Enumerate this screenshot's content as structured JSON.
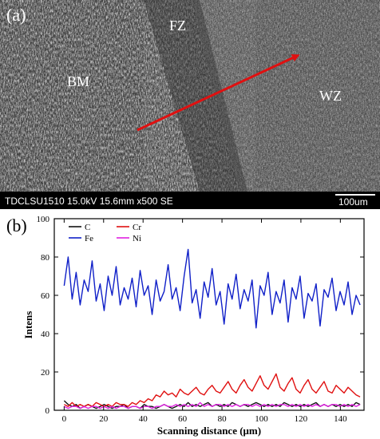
{
  "panel_a": {
    "tag": "(a)",
    "regions": [
      "FZ",
      "BM",
      "WZ"
    ],
    "info_bar": "TDCLSU1510 15.0kV 15.6mm x500 SE",
    "scale_label": "100um",
    "colors": {
      "arrow": "#e01010",
      "info_bar_bg": "#000000"
    }
  },
  "chart_data": {
    "type": "line",
    "panel_tag": "(b)",
    "xlabel": "Scanning distance (μm)",
    "ylabel": "Intens",
    "xlim": [
      -5,
      152
    ],
    "ylim": [
      0,
      100
    ],
    "xticks": [
      0,
      20,
      40,
      60,
      80,
      100,
      120,
      140
    ],
    "yticks": [
      0,
      20,
      40,
      60,
      80,
      100
    ],
    "legend_position": "top-left",
    "series": [
      {
        "name": "C",
        "color": "#111111",
        "x_start": 0,
        "x_end": 150,
        "values": [
          5,
          3,
          2,
          3,
          1,
          2,
          3,
          2,
          1,
          2,
          3,
          2,
          1,
          2,
          2,
          3,
          1,
          2,
          2,
          1,
          3,
          2,
          2,
          1,
          2,
          3,
          2,
          1,
          2,
          3,
          2,
          4,
          2,
          3,
          2,
          3,
          4,
          2,
          3,
          2,
          3,
          2,
          4,
          3,
          2,
          3,
          2,
          3,
          4,
          3,
          2,
          3,
          2,
          3,
          2,
          4,
          3,
          2,
          3,
          2,
          3,
          2,
          3,
          4,
          2,
          3,
          2,
          3,
          2,
          3,
          2,
          3,
          2,
          4,
          3
        ]
      },
      {
        "name": "Cr",
        "color": "#e01010",
        "x_start": 0,
        "x_end": 150,
        "values": [
          3,
          2,
          4,
          2,
          3,
          2,
          3,
          2,
          4,
          3,
          2,
          3,
          2,
          4,
          3,
          3,
          2,
          4,
          3,
          5,
          4,
          6,
          5,
          8,
          7,
          10,
          8,
          9,
          7,
          11,
          9,
          8,
          10,
          12,
          9,
          8,
          11,
          13,
          10,
          9,
          12,
          15,
          11,
          9,
          13,
          16,
          12,
          10,
          14,
          18,
          13,
          11,
          15,
          19,
          12,
          10,
          14,
          17,
          11,
          9,
          13,
          16,
          11,
          9,
          12,
          15,
          10,
          9,
          13,
          11,
          9,
          12,
          10,
          8,
          7
        ]
      },
      {
        "name": "Fe",
        "color": "#1020c8",
        "x_start": 0,
        "x_end": 150,
        "values": [
          65,
          80,
          58,
          72,
          55,
          68,
          62,
          78,
          57,
          66,
          52,
          70,
          60,
          75,
          55,
          64,
          58,
          69,
          54,
          73,
          60,
          65,
          50,
          68,
          57,
          62,
          76,
          58,
          64,
          52,
          70,
          84,
          56,
          63,
          48,
          67,
          59,
          74,
          55,
          62,
          45,
          66,
          58,
          71,
          53,
          63,
          57,
          68,
          43,
          65,
          60,
          72,
          50,
          62,
          56,
          68,
          46,
          64,
          58,
          70,
          48,
          61,
          57,
          66,
          44,
          63,
          59,
          69,
          52,
          62,
          55,
          67,
          50,
          60,
          55
        ]
      },
      {
        "name": "Ni",
        "color": "#e020e0",
        "x_start": 0,
        "x_end": 150,
        "values": [
          2,
          1,
          2,
          2,
          1,
          2,
          1,
          2,
          2,
          1,
          2,
          1,
          2,
          1,
          2,
          2,
          1,
          2,
          2,
          1,
          2,
          2,
          1,
          2,
          2,
          3,
          2,
          2,
          3,
          2,
          3,
          2,
          3,
          2,
          4,
          2,
          3,
          2,
          3,
          3,
          2,
          3,
          2,
          3,
          2,
          3,
          3,
          2,
          3,
          2,
          3,
          2,
          3,
          2,
          3,
          3,
          2,
          3,
          2,
          3,
          2,
          3,
          2,
          3,
          2,
          3,
          2,
          3,
          3,
          2,
          3,
          2,
          3,
          2,
          3
        ]
      }
    ]
  }
}
